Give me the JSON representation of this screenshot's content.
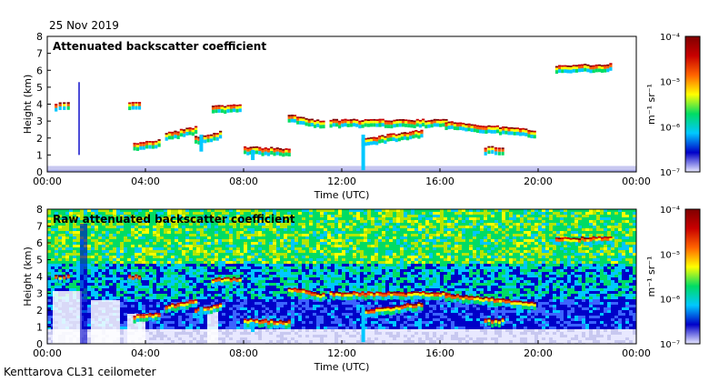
{
  "date": "25 Nov 2019",
  "site_label": "Kenttarova CL31 ceilometer",
  "colors": {
    "colormap": [
      "#e8e8ff",
      "#0000c8",
      "#00c8ff",
      "#00dc64",
      "#ffff00",
      "#ff6400",
      "#c80000",
      "#800000"
    ]
  },
  "chart_data": [
    {
      "type": "heatmap",
      "title": "Attenuated backscatter coefficient",
      "xlabel": "Time (UTC)",
      "ylabel": "Height (km)",
      "x_range_hours": [
        0,
        24
      ],
      "ylim": [
        0,
        8
      ],
      "x_ticks": [
        "00:00",
        "04:00",
        "08:00",
        "12:00",
        "16:00",
        "20:00",
        "00:00"
      ],
      "y_ticks": [
        "0",
        "1",
        "2",
        "3",
        "4",
        "5",
        "6",
        "7",
        "8"
      ],
      "colorbar": {
        "unit": "m⁻¹ sr⁻¹",
        "ticks": [
          "10⁻⁷",
          "10⁻⁶",
          "10⁻⁵",
          "10⁻⁴"
        ],
        "range_log10": [
          -7,
          -4
        ]
      },
      "cloud_layers": [
        {
          "t": [
            0.3,
            0.8
          ],
          "h": [
            4.0,
            4.0
          ]
        },
        {
          "t": [
            3.3,
            3.7
          ],
          "h": [
            4.0,
            4.0
          ]
        },
        {
          "t": [
            3.5,
            4.5
          ],
          "h": [
            1.6,
            1.8
          ]
        },
        {
          "t": [
            4.8,
            6.0
          ],
          "h": [
            2.2,
            2.6
          ]
        },
        {
          "t": [
            6.0,
            7.0
          ],
          "h": [
            2.0,
            2.3
          ]
        },
        {
          "t": [
            6.7,
            7.8
          ],
          "h": [
            3.8,
            3.9
          ]
        },
        {
          "t": [
            8.0,
            9.8
          ],
          "h": [
            1.4,
            1.3
          ]
        },
        {
          "t": [
            9.8,
            11.2
          ],
          "h": [
            3.3,
            2.9
          ]
        },
        {
          "t": [
            11.5,
            13.5
          ],
          "h": [
            3.0,
            3.0
          ]
        },
        {
          "t": [
            13.5,
            16.2
          ],
          "h": [
            3.0,
            3.0
          ]
        },
        {
          "t": [
            16.2,
            19.8
          ],
          "h": [
            2.9,
            2.4
          ]
        },
        {
          "t": [
            12.8,
            15.2
          ],
          "h": [
            1.9,
            2.4
          ]
        },
        {
          "t": [
            17.8,
            18.5
          ],
          "h": [
            1.4,
            1.4
          ]
        },
        {
          "t": [
            20.7,
            22.9
          ],
          "h": [
            6.2,
            6.3
          ]
        }
      ]
    },
    {
      "type": "heatmap",
      "title": "Raw attenuated backscatter coefficient",
      "xlabel": "Time (UTC)",
      "ylabel": "Height (km)",
      "x_range_hours": [
        0,
        24
      ],
      "ylim": [
        0,
        8
      ],
      "x_ticks": [
        "00:00",
        "04:00",
        "08:00",
        "12:00",
        "16:00",
        "20:00",
        "00:00"
      ],
      "y_ticks": [
        "0",
        "1",
        "2",
        "3",
        "4",
        "5",
        "6",
        "7",
        "8"
      ],
      "colorbar": {
        "unit": "m⁻¹ sr⁻¹",
        "ticks": [
          "10⁻⁷",
          "10⁻⁶",
          "10⁻⁵",
          "10⁻⁴"
        ],
        "range_log10": [
          -7,
          -4
        ]
      }
    }
  ]
}
